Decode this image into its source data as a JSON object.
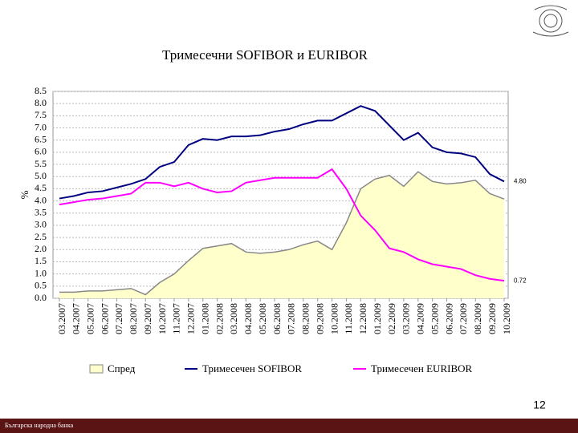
{
  "chart_data": {
    "type": "line",
    "title": "Тримесечни SOFIBOR и EURIBOR",
    "y_label": "%",
    "categories": [
      "03.2007",
      "04.2007",
      "05.2007",
      "06.2007",
      "07.2007",
      "08.2007",
      "09.2007",
      "10.2007",
      "11.2007",
      "12.2007",
      "01.2008",
      "02.2008",
      "03.2008",
      "04.2008",
      "05.2008",
      "06.2008",
      "07.2008",
      "08.2008",
      "09.2008",
      "10.2008",
      "11.2008",
      "12.2008",
      "01.2009",
      "02.2009",
      "03.2009",
      "04.2009",
      "05.2009",
      "06.2009",
      "07.2009",
      "08.2009",
      "09.2009",
      "10.2009"
    ],
    "series": [
      {
        "name": "Спред",
        "kind": "area",
        "color": "#ffffcc",
        "values": [
          0.25,
          0.25,
          0.3,
          0.3,
          0.35,
          0.4,
          0.15,
          0.65,
          1.0,
          1.55,
          2.05,
          2.15,
          2.25,
          1.9,
          1.85,
          1.9,
          2.0,
          2.2,
          2.35,
          2.0,
          3.1,
          4.5,
          4.9,
          5.05,
          4.6,
          5.2,
          4.8,
          4.7,
          4.75,
          4.85,
          4.3,
          4.08
        ]
      },
      {
        "name": "Тримесечен SOFIBOR",
        "kind": "line",
        "color": "#000080",
        "values": [
          4.1,
          4.2,
          4.35,
          4.4,
          4.55,
          4.7,
          4.9,
          5.4,
          5.6,
          6.3,
          6.55,
          6.5,
          6.65,
          6.65,
          6.7,
          6.85,
          6.95,
          7.15,
          7.3,
          7.3,
          7.6,
          7.9,
          7.7,
          7.1,
          6.5,
          6.8,
          6.2,
          6.0,
          5.95,
          5.8,
          5.1,
          4.8
        ]
      },
      {
        "name": "Тримесечен EURIBOR",
        "kind": "line",
        "color": "#ff00ff",
        "values": [
          3.85,
          3.95,
          4.05,
          4.1,
          4.2,
          4.3,
          4.75,
          4.75,
          4.6,
          4.75,
          4.5,
          4.35,
          4.4,
          4.75,
          4.85,
          4.95,
          4.95,
          4.95,
          4.95,
          5.3,
          4.5,
          3.4,
          2.8,
          2.05,
          1.9,
          1.6,
          1.4,
          1.3,
          1.2,
          0.95,
          0.8,
          0.72
        ]
      }
    ],
    "end_labels": [
      "4.80",
      "0.72"
    ],
    "ylim": [
      0,
      8.5
    ],
    "yticks": [
      {
        "value": 0,
        "label": "0.0"
      },
      0.5,
      {
        "value": 1,
        "label": "1.0"
      },
      1.5,
      {
        "value": 2,
        "label": "2.0"
      },
      2.5,
      {
        "value": 3,
        "label": "3.0"
      },
      3.5,
      {
        "value": 4,
        "label": "4.0"
      },
      4.5,
      {
        "value": 5,
        "label": "5.0"
      },
      5.5,
      {
        "value": 6,
        "label": "6.0"
      },
      6.5,
      {
        "value": 7,
        "label": "7.0"
      },
      7.5,
      {
        "value": 8,
        "label": "8.0"
      },
      8.5
    ],
    "grid": true
  },
  "slide": {
    "page_number": "12",
    "footer": "Българска народна банка"
  }
}
